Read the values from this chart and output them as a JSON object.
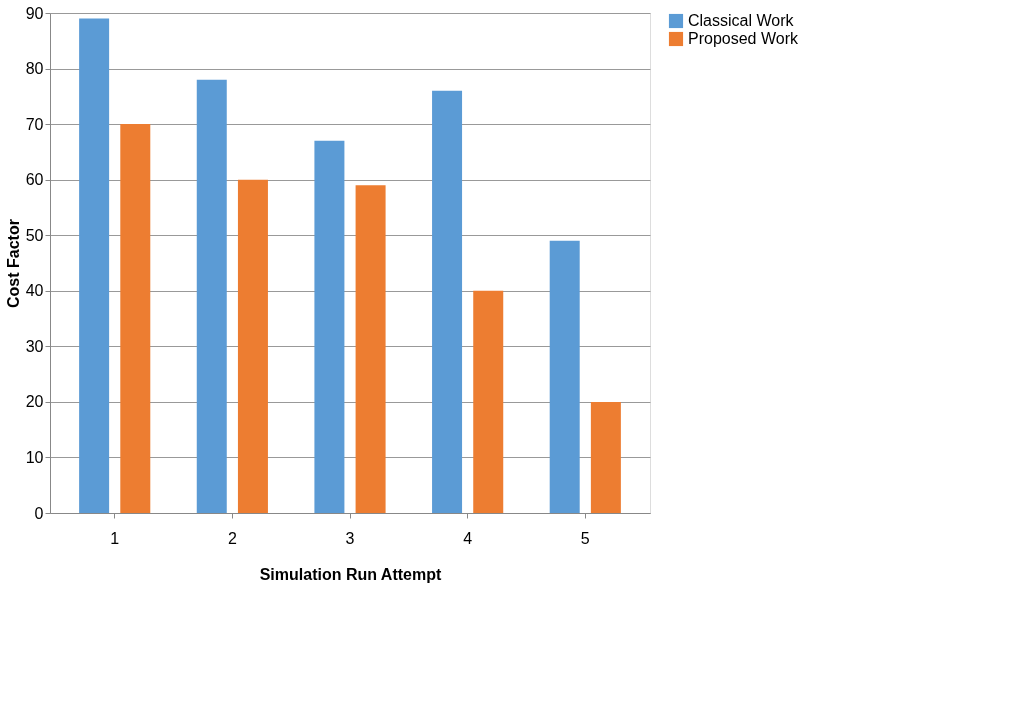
{
  "chart_data": {
    "type": "bar",
    "xlabel": "Simulation Run Attempt",
    "ylabel": "Cost Factor",
    "categories": [
      "1",
      "2",
      "3",
      "4",
      "5"
    ],
    "series": [
      {
        "name": "Classical Work",
        "color": "#5b9bd5",
        "values": [
          89,
          78,
          67,
          76,
          49
        ]
      },
      {
        "name": "Proposed Work",
        "color": "#ed7d31",
        "values": [
          70,
          60,
          59,
          40,
          20
        ]
      }
    ],
    "ylim": [
      0,
      90
    ],
    "yticks": [
      0,
      10,
      20,
      30,
      40,
      50,
      60,
      70,
      80,
      90
    ],
    "grid": "y",
    "legend": "right"
  }
}
